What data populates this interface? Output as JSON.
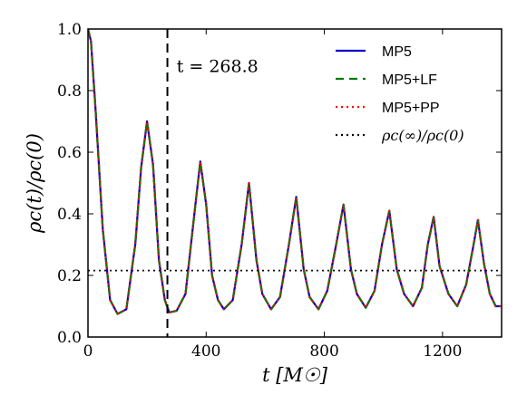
{
  "chart_data": {
    "type": "line",
    "xlabel": "t [M☉]",
    "ylabel": "ρc(t)/ρc(0)",
    "xlim": [
      0,
      1400
    ],
    "ylim": [
      0.0,
      1.0
    ],
    "xticks": [
      0,
      400,
      800,
      1200
    ],
    "xtick_labels": [
      "0",
      "400",
      "800",
      "1200"
    ],
    "yticks": [
      0.0,
      0.2,
      0.4,
      0.6,
      0.8,
      1.0
    ],
    "ytick_labels": [
      "0.0",
      "0.2",
      "0.4",
      "0.6",
      "0.8",
      "1.0"
    ],
    "grid": false,
    "legend_position": "top-right",
    "series": [
      {
        "name": "MP5",
        "color": "#0000cc",
        "style": "solid",
        "x": [
          0,
          10,
          25,
          50,
          75,
          100,
          130,
          160,
          180,
          200,
          220,
          240,
          260,
          275,
          300,
          330,
          360,
          380,
          400,
          420,
          440,
          460,
          490,
          520,
          545,
          570,
          590,
          620,
          650,
          680,
          705,
          730,
          750,
          780,
          810,
          840,
          865,
          890,
          910,
          940,
          970,
          995,
          1020,
          1045,
          1070,
          1100,
          1130,
          1150,
          1170,
          1190,
          1220,
          1250,
          1280,
          1305,
          1320,
          1340,
          1360,
          1380,
          1400
        ],
        "y": [
          1.0,
          0.96,
          0.75,
          0.35,
          0.12,
          0.075,
          0.09,
          0.3,
          0.55,
          0.7,
          0.56,
          0.25,
          0.12,
          0.08,
          0.085,
          0.14,
          0.4,
          0.57,
          0.43,
          0.2,
          0.12,
          0.09,
          0.12,
          0.3,
          0.5,
          0.25,
          0.14,
          0.09,
          0.13,
          0.3,
          0.455,
          0.22,
          0.13,
          0.09,
          0.15,
          0.3,
          0.43,
          0.22,
          0.14,
          0.095,
          0.15,
          0.3,
          0.41,
          0.22,
          0.14,
          0.1,
          0.16,
          0.3,
          0.39,
          0.23,
          0.14,
          0.1,
          0.17,
          0.3,
          0.38,
          0.24,
          0.14,
          0.1,
          0.1
        ]
      },
      {
        "name": "MP5+LF",
        "color": "#007a00",
        "style": "dashed",
        "x": [
          0,
          10,
          25,
          50,
          75,
          100,
          130,
          160,
          180,
          200,
          220,
          240,
          260,
          275,
          300,
          330,
          360,
          380,
          400,
          420,
          440,
          460,
          490,
          520,
          545,
          570,
          590,
          620,
          650,
          680,
          705,
          730,
          750,
          780,
          810,
          840,
          865,
          890,
          910,
          940,
          970,
          995,
          1020,
          1045,
          1070,
          1100,
          1130,
          1150,
          1170,
          1190,
          1220,
          1250,
          1280,
          1305,
          1320,
          1340,
          1360,
          1380,
          1400
        ],
        "y": [
          1.0,
          0.96,
          0.75,
          0.35,
          0.12,
          0.075,
          0.09,
          0.3,
          0.55,
          0.7,
          0.56,
          0.25,
          0.12,
          0.08,
          0.085,
          0.14,
          0.4,
          0.57,
          0.43,
          0.2,
          0.12,
          0.09,
          0.12,
          0.3,
          0.5,
          0.25,
          0.14,
          0.09,
          0.13,
          0.3,
          0.455,
          0.22,
          0.13,
          0.09,
          0.15,
          0.3,
          0.43,
          0.22,
          0.14,
          0.095,
          0.15,
          0.3,
          0.41,
          0.22,
          0.14,
          0.1,
          0.16,
          0.3,
          0.39,
          0.23,
          0.14,
          0.1,
          0.17,
          0.3,
          0.38,
          0.24,
          0.14,
          0.1,
          0.1
        ]
      },
      {
        "name": "MP5+PP",
        "color": "#ff0000",
        "style": "dotted",
        "x": [
          0,
          10,
          25,
          50,
          75,
          100,
          130,
          160,
          180,
          200,
          220,
          240,
          260,
          275,
          300,
          330,
          360,
          380,
          400,
          420,
          440,
          460,
          490,
          520,
          545,
          570,
          590,
          620,
          650,
          680,
          705,
          730,
          750,
          780,
          810,
          840,
          865,
          890,
          910,
          940,
          970,
          995,
          1020,
          1045,
          1070,
          1100,
          1130,
          1150,
          1170,
          1190,
          1220,
          1250,
          1280,
          1305,
          1320,
          1340,
          1360,
          1380,
          1400
        ],
        "y": [
          1.0,
          0.96,
          0.75,
          0.35,
          0.12,
          0.075,
          0.09,
          0.3,
          0.55,
          0.7,
          0.56,
          0.25,
          0.12,
          0.08,
          0.085,
          0.14,
          0.4,
          0.57,
          0.43,
          0.2,
          0.12,
          0.09,
          0.12,
          0.3,
          0.5,
          0.25,
          0.14,
          0.09,
          0.13,
          0.3,
          0.455,
          0.22,
          0.13,
          0.09,
          0.15,
          0.3,
          0.43,
          0.22,
          0.14,
          0.095,
          0.15,
          0.3,
          0.41,
          0.22,
          0.14,
          0.1,
          0.16,
          0.3,
          0.39,
          0.23,
          0.14,
          0.1,
          0.17,
          0.3,
          0.38,
          0.24,
          0.14,
          0.1,
          0.1
        ]
      },
      {
        "name": "ρc(∞)/ρc(0)",
        "color": "#000000",
        "style": "dotted",
        "x": [
          0,
          1400
        ],
        "y": [
          0.216,
          0.216
        ]
      }
    ],
    "vline": {
      "x": 268.8,
      "color": "#000000",
      "style": "dashed"
    },
    "annotations": [
      {
        "text": "t = 268.8",
        "x": 300,
        "y": 0.86
      }
    ]
  }
}
